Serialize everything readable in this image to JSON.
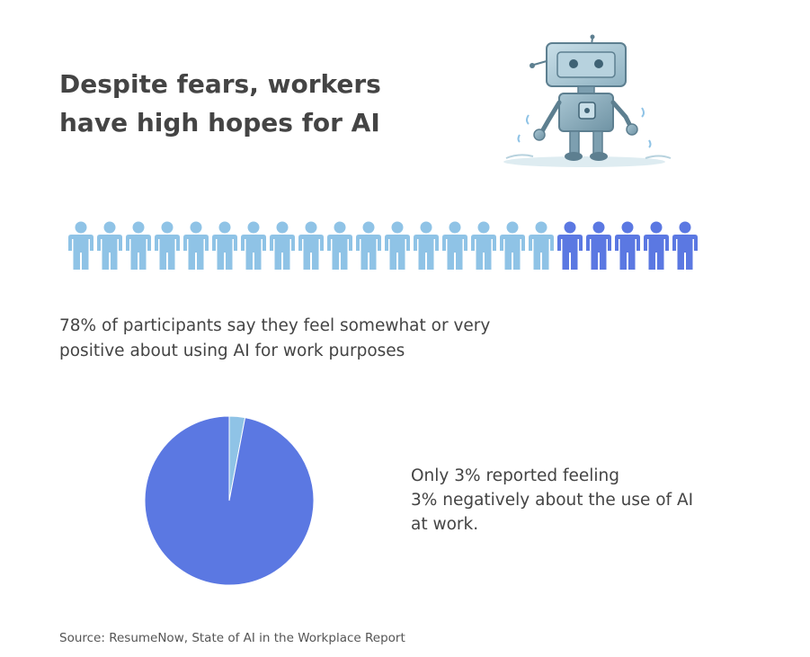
{
  "title_lines": [
    "Despite fears, workers",
    "have high hopes for AI"
  ],
  "robot_icon": "robot-illustration",
  "colors": {
    "light_blue": "#8fc3e6",
    "dark_blue": "#5b78e2",
    "text": "#444444"
  },
  "chart_data": [
    {
      "type": "pictogram",
      "total_icons": 22,
      "highlighted_icons": 5,
      "highlight_position": "right",
      "icon": "person-icon",
      "caption_lines": [
        "78% of participants say they feel somewhat or very",
        "positive about using AI for work purposes"
      ]
    },
    {
      "type": "pie",
      "slices": [
        {
          "label": "negative",
          "value": 3,
          "color": "#8fc3e6"
        },
        {
          "label": "other",
          "value": 97,
          "color": "#5b78e2"
        }
      ],
      "caption_lines": [
        "Only 3% reported feeling",
        "3% negatively about the use of AI",
        "at work."
      ]
    }
  ],
  "source": "Source: ResumeNow, State of AI in the Workplace Report"
}
